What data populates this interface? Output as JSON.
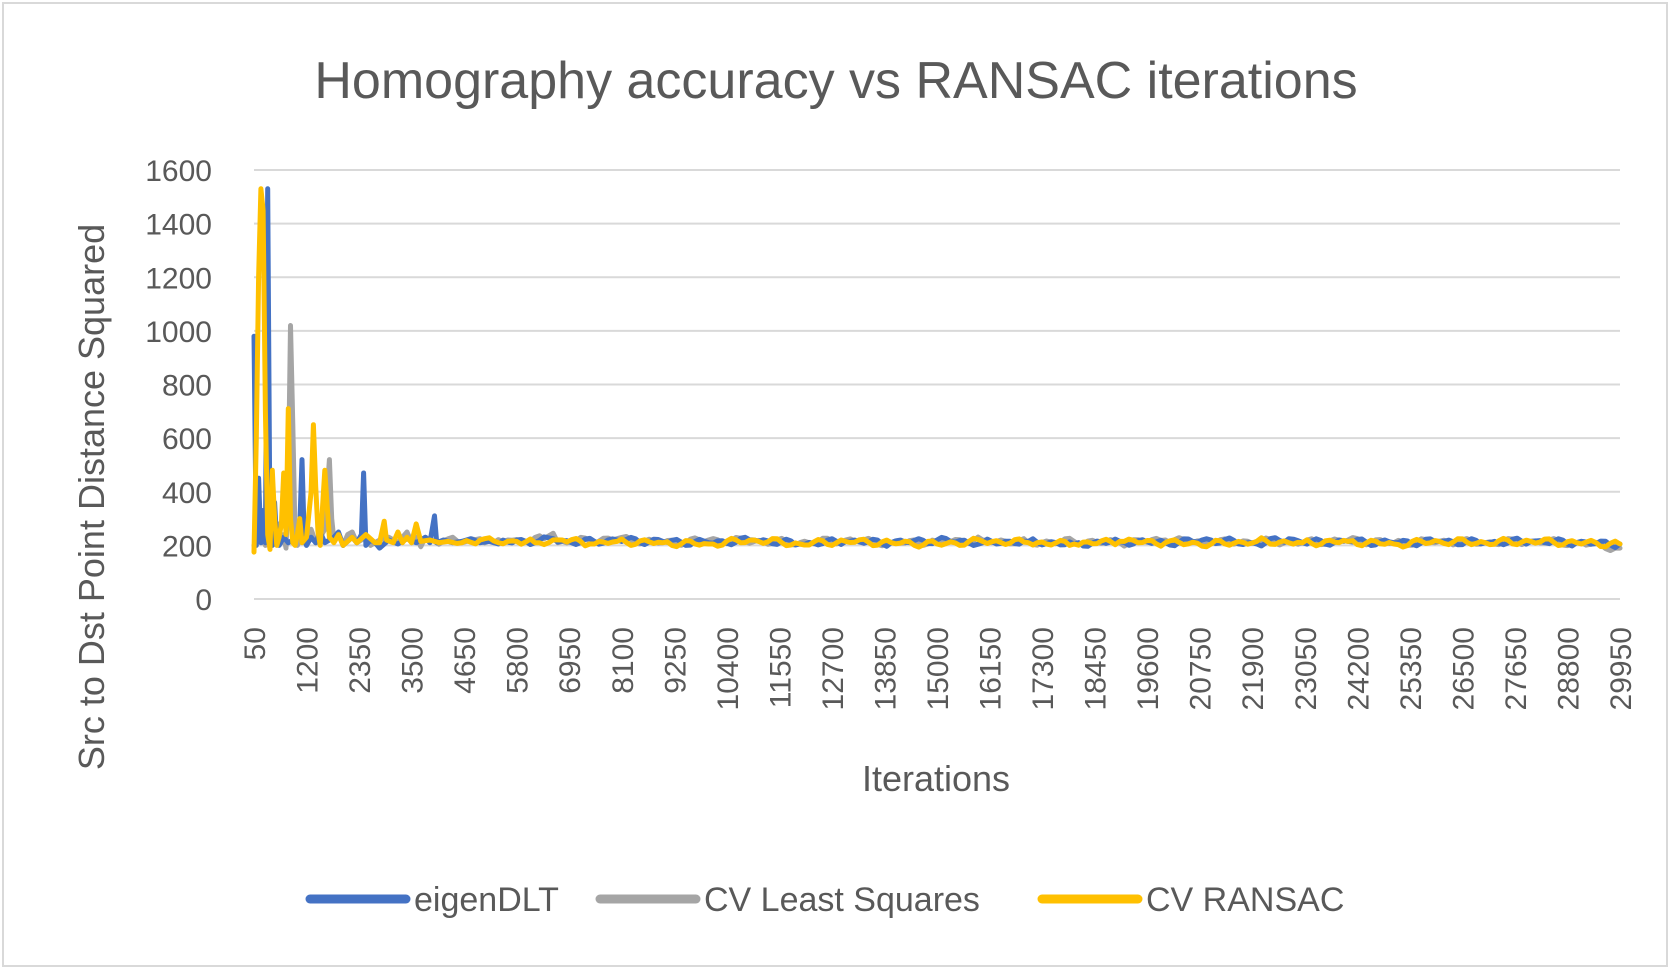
{
  "chart_data": {
    "type": "line",
    "title": "Homography accuracy vs RANSAC iterations",
    "xlabel": "Iterations",
    "ylabel": "Src to Dst Point Distance Squared",
    "ylim": [
      0,
      1600
    ],
    "yticks": [
      "0",
      "200",
      "400",
      "600",
      "800",
      "1000",
      "1200",
      "1400",
      "1600"
    ],
    "x_start": 50,
    "x_step": 50,
    "x_end": 29950,
    "xtick_labels": [
      "50",
      "1200",
      "2350",
      "3500",
      "4650",
      "5800",
      "6950",
      "8100",
      "9250",
      "10400",
      "11550",
      "12700",
      "13850",
      "15000",
      "16150",
      "17300",
      "18450",
      "19600",
      "20750",
      "21900",
      "23050",
      "24200",
      "25350",
      "26500",
      "27650",
      "28800",
      "29950"
    ],
    "grid": "horizontal",
    "legend_position": "bottom",
    "baseline": 210,
    "series": [
      {
        "name": "eigenDLT",
        "color": "#4472c4",
        "points": [
          [
            50,
            980
          ],
          [
            100,
            200
          ],
          [
            150,
            450
          ],
          [
            200,
            210
          ],
          [
            250,
            330
          ],
          [
            300,
            210
          ],
          [
            350,
            1530
          ],
          [
            400,
            220
          ],
          [
            450,
            200
          ],
          [
            500,
            360
          ],
          [
            550,
            210
          ],
          [
            600,
            200
          ],
          [
            700,
            230
          ],
          [
            800,
            210
          ],
          [
            900,
            220
          ],
          [
            1000,
            230
          ],
          [
            1050,
            260
          ],
          [
            1100,
            520
          ],
          [
            1150,
            220
          ],
          [
            1200,
            200
          ],
          [
            1300,
            230
          ],
          [
            1400,
            210
          ],
          [
            1500,
            250
          ],
          [
            1600,
            210
          ],
          [
            1800,
            230
          ],
          [
            1900,
            250
          ],
          [
            2000,
            200
          ],
          [
            2200,
            230
          ],
          [
            2300,
            210
          ],
          [
            2400,
            240
          ],
          [
            2450,
            470
          ],
          [
            2500,
            200
          ],
          [
            2600,
            220
          ],
          [
            2700,
            210
          ],
          [
            2800,
            190
          ],
          [
            3000,
            220
          ],
          [
            3200,
            205
          ],
          [
            3400,
            225
          ],
          [
            3600,
            210
          ],
          [
            3800,
            230
          ],
          [
            3900,
            210
          ],
          [
            4000,
            310
          ],
          [
            4050,
            210
          ],
          [
            4200,
            220
          ],
          [
            4400,
            210
          ],
          [
            4600,
            215
          ],
          [
            4800,
            225
          ],
          [
            5000,
            210
          ],
          [
            5200,
            215
          ],
          [
            5400,
            205
          ],
          [
            5800,
            220
          ],
          [
            6200,
            210
          ],
          [
            6600,
            225
          ],
          [
            7000,
            210
          ],
          [
            8000,
            220
          ],
          [
            9000,
            215
          ],
          [
            10000,
            210
          ],
          [
            11000,
            220
          ],
          [
            12000,
            205
          ],
          [
            13000,
            215
          ],
          [
            14000,
            210
          ],
          [
            15000,
            220
          ],
          [
            16000,
            210
          ],
          [
            17000,
            215
          ],
          [
            18000,
            205
          ],
          [
            19000,
            215
          ],
          [
            20000,
            210
          ],
          [
            21000,
            220
          ],
          [
            22000,
            205
          ],
          [
            22700,
            225
          ],
          [
            23000,
            210
          ],
          [
            24000,
            215
          ],
          [
            25000,
            210
          ],
          [
            26000,
            215
          ],
          [
            27000,
            210
          ],
          [
            28000,
            215
          ],
          [
            29000,
            210
          ],
          [
            29950,
            205
          ]
        ]
      },
      {
        "name": "CV Least Squares",
        "color": "#a5a5a5",
        "points": [
          [
            50,
            200
          ],
          [
            100,
            210
          ],
          [
            150,
            250
          ],
          [
            200,
            210
          ],
          [
            250,
            220
          ],
          [
            300,
            200
          ],
          [
            400,
            240
          ],
          [
            500,
            220
          ],
          [
            600,
            280
          ],
          [
            650,
            210
          ],
          [
            700,
            240
          ],
          [
            750,
            190
          ],
          [
            800,
            430
          ],
          [
            850,
            1020
          ],
          [
            900,
            650
          ],
          [
            950,
            230
          ],
          [
            1000,
            200
          ],
          [
            1100,
            240
          ],
          [
            1200,
            210
          ],
          [
            1300,
            260
          ],
          [
            1400,
            210
          ],
          [
            1500,
            230
          ],
          [
            1600,
            260
          ],
          [
            1700,
            520
          ],
          [
            1750,
            300
          ],
          [
            1800,
            220
          ],
          [
            1900,
            240
          ],
          [
            2000,
            200
          ],
          [
            2100,
            240
          ],
          [
            2200,
            250
          ],
          [
            2300,
            210
          ],
          [
            2400,
            220
          ],
          [
            2500,
            240
          ],
          [
            2600,
            200
          ],
          [
            2800,
            220
          ],
          [
            3000,
            230
          ],
          [
            3200,
            210
          ],
          [
            3400,
            250
          ],
          [
            3500,
            210
          ],
          [
            3600,
            230
          ],
          [
            3700,
            195
          ],
          [
            3800,
            230
          ],
          [
            4000,
            215
          ],
          [
            4300,
            225
          ],
          [
            4600,
            210
          ],
          [
            5000,
            225
          ],
          [
            5300,
            210
          ],
          [
            5600,
            220
          ],
          [
            6000,
            215
          ],
          [
            6400,
            225
          ],
          [
            6600,
            245
          ],
          [
            6700,
            210
          ],
          [
            7000,
            215
          ],
          [
            8000,
            225
          ],
          [
            9000,
            210
          ],
          [
            10000,
            220
          ],
          [
            11000,
            215
          ],
          [
            12000,
            210
          ],
          [
            13000,
            220
          ],
          [
            14000,
            210
          ],
          [
            15000,
            215
          ],
          [
            16000,
            220
          ],
          [
            17000,
            210
          ],
          [
            18000,
            215
          ],
          [
            19000,
            210
          ],
          [
            20000,
            220
          ],
          [
            21000,
            210
          ],
          [
            22000,
            215
          ],
          [
            23000,
            210
          ],
          [
            24000,
            220
          ],
          [
            25000,
            210
          ],
          [
            26000,
            215
          ],
          [
            27000,
            210
          ],
          [
            28000,
            215
          ],
          [
            29000,
            210
          ],
          [
            29950,
            190
          ]
        ]
      },
      {
        "name": "CV RANSAC",
        "color": "#ffc000",
        "points": [
          [
            50,
            175
          ],
          [
            100,
            600
          ],
          [
            150,
            1200
          ],
          [
            200,
            1530
          ],
          [
            250,
            1450
          ],
          [
            300,
            700
          ],
          [
            350,
            240
          ],
          [
            400,
            185
          ],
          [
            450,
            480
          ],
          [
            500,
            300
          ],
          [
            550,
            200
          ],
          [
            600,
            230
          ],
          [
            650,
            280
          ],
          [
            700,
            470
          ],
          [
            750,
            240
          ],
          [
            800,
            710
          ],
          [
            850,
            300
          ],
          [
            900,
            210
          ],
          [
            950,
            200
          ],
          [
            1000,
            240
          ],
          [
            1050,
            300
          ],
          [
            1100,
            210
          ],
          [
            1200,
            230
          ],
          [
            1300,
            400
          ],
          [
            1350,
            650
          ],
          [
            1400,
            420
          ],
          [
            1450,
            250
          ],
          [
            1500,
            200
          ],
          [
            1600,
            480
          ],
          [
            1650,
            350
          ],
          [
            1700,
            230
          ],
          [
            1800,
            210
          ],
          [
            1900,
            240
          ],
          [
            2000,
            200
          ],
          [
            2200,
            230
          ],
          [
            2300,
            210
          ],
          [
            2500,
            240
          ],
          [
            2700,
            210
          ],
          [
            2800,
            210
          ],
          [
            2900,
            290
          ],
          [
            2950,
            220
          ],
          [
            3100,
            210
          ],
          [
            3200,
            250
          ],
          [
            3300,
            210
          ],
          [
            3400,
            230
          ],
          [
            3500,
            210
          ],
          [
            3600,
            280
          ],
          [
            3700,
            215
          ],
          [
            3900,
            220
          ],
          [
            4100,
            210
          ],
          [
            4300,
            215
          ],
          [
            4600,
            210
          ],
          [
            5000,
            220
          ],
          [
            5400,
            210
          ],
          [
            5800,
            215
          ],
          [
            6200,
            210
          ],
          [
            6800,
            220
          ],
          [
            7400,
            205
          ],
          [
            8000,
            215
          ],
          [
            9000,
            210
          ],
          [
            10000,
            205
          ],
          [
            11000,
            220
          ],
          [
            12000,
            205
          ],
          [
            13000,
            215
          ],
          [
            14000,
            210
          ],
          [
            15000,
            205
          ],
          [
            16000,
            215
          ],
          [
            17000,
            210
          ],
          [
            18000,
            205
          ],
          [
            19000,
            215
          ],
          [
            20000,
            210
          ],
          [
            21000,
            205
          ],
          [
            22000,
            215
          ],
          [
            23000,
            210
          ],
          [
            24000,
            215
          ],
          [
            25000,
            205
          ],
          [
            26000,
            215
          ],
          [
            27000,
            210
          ],
          [
            28000,
            215
          ],
          [
            29000,
            210
          ],
          [
            29950,
            205
          ]
        ]
      }
    ]
  }
}
